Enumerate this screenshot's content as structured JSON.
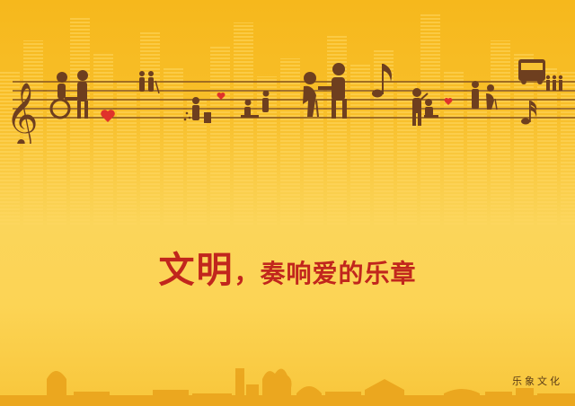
{
  "poster": {
    "headline_lead": "文明",
    "headline_rest": "，奏响爱的乐章",
    "seal_text": "乐象文化"
  },
  "colors": {
    "background_top": "#f6b81c",
    "background_bottom": "#fcd455",
    "headline": "#c1261d",
    "pictogram": "#6e3f1f",
    "heart": "#e0322b"
  },
  "icons": [
    "treble-clef-icon",
    "wheelchair-assist-icon",
    "heart-icon",
    "people-walking-icon",
    "litter-bin-icon",
    "helping-hand-icon",
    "elder-assist-icon",
    "eighth-note-icon",
    "seat-offer-icon",
    "bus-icon",
    "queue-icon",
    "sixteenth-note-icon"
  ]
}
